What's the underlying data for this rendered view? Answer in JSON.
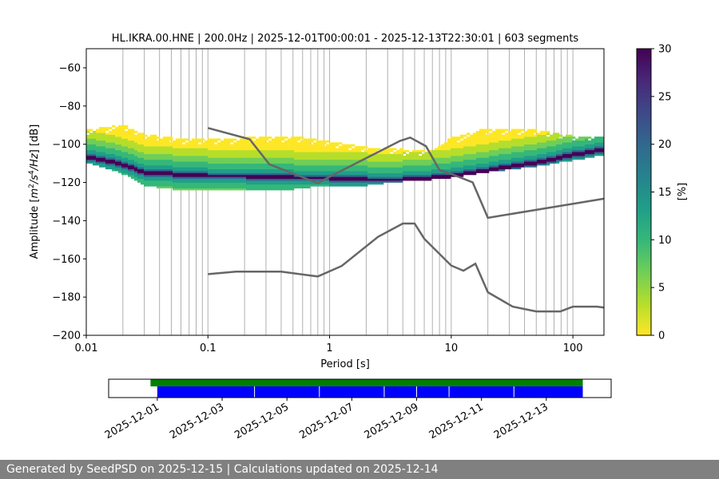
{
  "footer": {
    "text": "Generated by SeedPSD on 2025-12-15 | Calculations updated on 2025-12-14"
  },
  "chart_data": [
    {
      "type": "heatmap",
      "title": "HL.IKRA.00.HNE | 200.0Hz | 2025-12-01T00:00:01 - 2025-12-13T22:30:01 | 603 segments",
      "xlabel": "Period [s]",
      "ylabel_parts": [
        "Amplitude [",
        "m",
        "2",
        "/s",
        "4",
        "/Hz",
        "] [dB]"
      ],
      "xscale": "log",
      "xlim": [
        0.01,
        180
      ],
      "ylim": [
        -200,
        -50
      ],
      "grid": true,
      "x_ticks": [
        {
          "value": 0.01,
          "label": "0.01"
        },
        {
          "value": 0.1,
          "label": "0.1"
        },
        {
          "value": 1,
          "label": "1"
        },
        {
          "value": 10,
          "label": "10"
        },
        {
          "value": 100,
          "label": "100"
        }
      ],
      "x_gridlines": [
        0.02,
        0.03,
        0.04,
        0.05,
        0.06,
        0.07,
        0.08,
        0.09,
        0.1,
        0.2,
        0.3,
        0.4,
        0.5,
        0.6,
        0.7,
        0.8,
        0.9,
        1,
        2,
        3,
        4,
        5,
        6,
        7,
        8,
        9,
        10,
        20,
        30,
        40,
        50,
        60,
        70,
        80,
        90,
        100
      ],
      "y_ticks": [
        -200,
        -180,
        -160,
        -140,
        -120,
        -100,
        -80,
        -60
      ],
      "colorbar": {
        "label": "[%]",
        "min": 0,
        "max": 30,
        "ticks": [
          0,
          5,
          10,
          15,
          20,
          25,
          30
        ],
        "colormap": "viridis_r",
        "stops": [
          "#fde725",
          "#b5de2b",
          "#6ece58",
          "#35b779",
          "#1f9e89",
          "#26828e",
          "#31688e",
          "#3e4989",
          "#482878",
          "#440154"
        ]
      },
      "density_band": [
        {
          "x": 0.01,
          "lower": -110,
          "upper": -93,
          "peak": -107
        },
        {
          "x": 0.02,
          "lower": -116,
          "upper": -90,
          "peak": -111
        },
        {
          "x": 0.03,
          "lower": -122,
          "upper": -95,
          "peak": -115
        },
        {
          "x": 0.05,
          "lower": -124,
          "upper": -97,
          "peak": -116
        },
        {
          "x": 0.1,
          "lower": -124,
          "upper": -98,
          "peak": -117
        },
        {
          "x": 0.2,
          "lower": -124,
          "upper": -97,
          "peak": -117
        },
        {
          "x": 0.5,
          "lower": -124,
          "upper": -96,
          "peak": -118
        },
        {
          "x": 1,
          "lower": -122,
          "upper": -99,
          "peak": -118
        },
        {
          "x": 2,
          "lower": -122,
          "upper": -102,
          "peak": -119
        },
        {
          "x": 4,
          "lower": -120,
          "upper": -103,
          "peak": -119
        },
        {
          "x": 7,
          "lower": -119,
          "upper": -104,
          "peak": -118
        },
        {
          "x": 10,
          "lower": -118,
          "upper": -97,
          "peak": -117
        },
        {
          "x": 20,
          "lower": -115,
          "upper": -92,
          "peak": -114
        },
        {
          "x": 50,
          "lower": -112,
          "upper": -93,
          "peak": -110
        },
        {
          "x": 100,
          "lower": -109,
          "upper": -96,
          "peak": -106
        },
        {
          "x": 180,
          "lower": -106,
          "upper": -96,
          "peak": -103
        }
      ],
      "series": [
        {
          "values": [
            [
              0.1,
              -91.5
            ],
            [
              0.22,
              -97.4
            ],
            [
              0.32,
              -110.5
            ],
            [
              0.8,
              -120.4
            ],
            [
              1,
              -117
            ],
            [
              3.8,
              -98.2
            ],
            [
              4.6,
              -96.5
            ],
            [
              6.2,
              -101
            ],
            [
              8,
              -113.5
            ],
            [
              10,
              -115.5
            ],
            [
              15,
              -120
            ],
            [
              20,
              -138.5
            ],
            [
              180,
              -128.5
            ]
          ],
          "color": "#666666"
        },
        {
          "values": [
            [
              0.1,
              -168
            ],
            [
              0.17,
              -166.7
            ],
            [
              0.4,
              -166.7
            ],
            [
              0.8,
              -169.2
            ],
            [
              1.26,
              -163.7
            ],
            [
              2.5,
              -148.5
            ],
            [
              4,
              -141.5
            ],
            [
              5,
              -141.5
            ],
            [
              6,
              -149.5
            ],
            [
              10,
              -163.5
            ],
            [
              12.6,
              -166.2
            ],
            [
              15.8,
              -162.5
            ],
            [
              20,
              -177.5
            ],
            [
              32,
              -185
            ],
            [
              50,
              -187.5
            ],
            [
              79,
              -187.5
            ],
            [
              100,
              -185
            ],
            [
              158,
              -185
            ],
            [
              180,
              -185.5
            ]
          ],
          "color": "#666666"
        }
      ]
    },
    {
      "type": "timeline",
      "x_tick_labels": [
        "2025-12-01",
        "2025-12-03",
        "2025-12-05",
        "2025-12-07",
        "2025-12-09",
        "2025-12-11",
        "2025-12-13"
      ],
      "xlim": [
        "2025-11-29T12:00",
        "2025-12-15T00:00"
      ],
      "bars": [
        {
          "start": "2025-11-30T19:00",
          "end": "2025-12-14T03:00",
          "color": "#008000"
        },
        {
          "start": "2025-12-01T00:00",
          "end": "2025-12-14T03:00",
          "color": "#0000ff"
        }
      ],
      "gap_lines": [
        "2025-12-04",
        "2025-12-06",
        "2025-12-08",
        "2025-12-09",
        "2025-12-10",
        "2025-12-12"
      ]
    }
  ]
}
